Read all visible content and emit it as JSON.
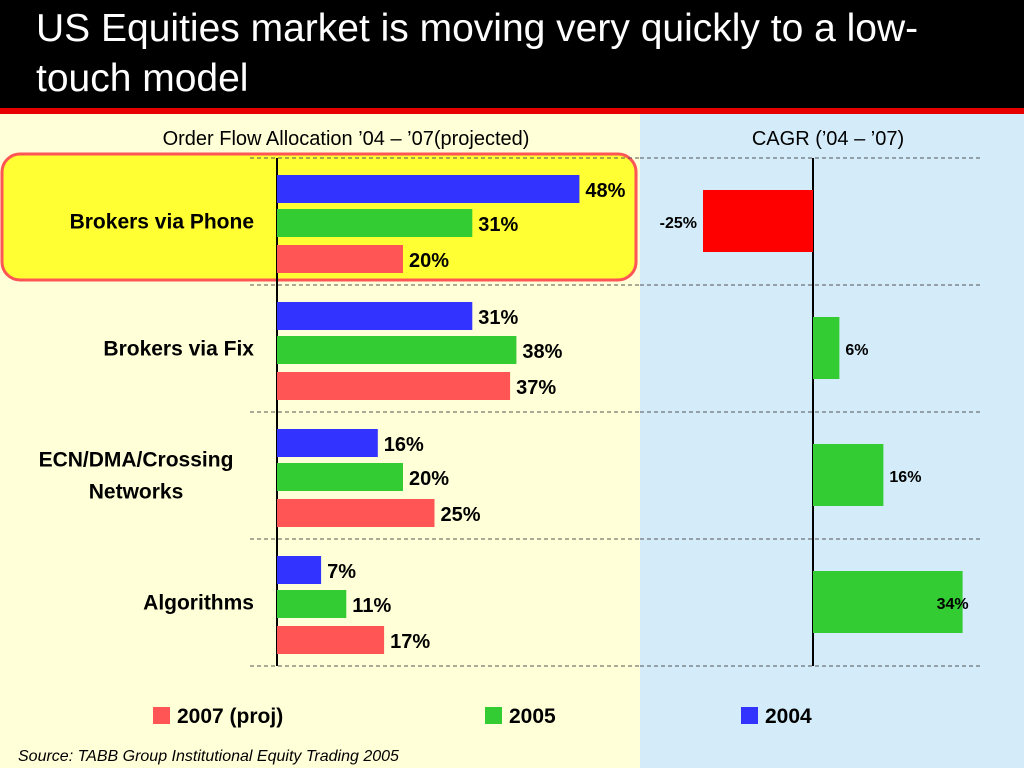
{
  "title": "US Equities market is moving very quickly to a low-touch model",
  "left_subtitle": "Order Flow Allocation ’04 – ’07(projected)",
  "right_subtitle": "CAGR (’04 – ’07)",
  "source": "Source: TABB Group Institutional Equity Trading 2005",
  "colors": {
    "2004": "#3333ff",
    "2005": "#33cc33",
    "2007": "#ff5555",
    "negative": "#ff0000",
    "highlight": "#ffff33",
    "highlight_border": "#ff5555"
  },
  "chart_data": [
    {
      "type": "bar",
      "orientation": "horizontal",
      "title": "Order Flow Allocation ’04 – ’07(projected)",
      "categories": [
        [
          "Brokers via Phone"
        ],
        [
          "Brokers via Fix"
        ],
        [
          "ECN/DMA/Crossing",
          "Networks"
        ],
        [
          "Algorithms"
        ]
      ],
      "series": [
        {
          "name": "2004",
          "values": [
            48,
            31,
            16,
            7
          ],
          "labels": [
            "48%",
            "31%",
            "16%",
            "7%"
          ]
        },
        {
          "name": "2005",
          "values": [
            31,
            38,
            20,
            11
          ],
          "labels": [
            "31%",
            "38%",
            "20%",
            "11%"
          ]
        },
        {
          "name": "2007 (proj)",
          "values": [
            20,
            37,
            25,
            17
          ],
          "labels": [
            "20%",
            "37%",
            "25%",
            "17%"
          ]
        }
      ],
      "xlim": [
        0,
        50
      ],
      "highlighted_category": "Brokers via Phone",
      "legend": {
        "order": [
          "2007 (proj)",
          "2005",
          "2004"
        ],
        "placement": "bottom"
      }
    },
    {
      "type": "bar",
      "orientation": "horizontal",
      "title": "CAGR (’04 – ’07)",
      "categories": [
        "Brokers via Phone",
        "Brokers via Fix",
        "ECN/DMA/Crossing Networks",
        "Algorithms"
      ],
      "values": [
        -25,
        6,
        16,
        34
      ],
      "labels": [
        "-25%",
        "6%",
        "16%",
        "34%"
      ],
      "xlim": [
        -25,
        35
      ]
    }
  ]
}
